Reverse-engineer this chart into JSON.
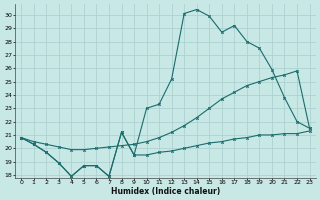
{
  "xlabel": "Humidex (Indice chaleur)",
  "xlim": [
    -0.5,
    23.5
  ],
  "ylim": [
    17.8,
    30.8
  ],
  "yticks": [
    18,
    19,
    20,
    21,
    22,
    23,
    24,
    25,
    26,
    27,
    28,
    29,
    30
  ],
  "xticks": [
    0,
    1,
    2,
    3,
    4,
    5,
    6,
    7,
    8,
    9,
    10,
    11,
    12,
    13,
    14,
    15,
    16,
    17,
    18,
    19,
    20,
    21,
    22,
    23
  ],
  "bg_color": "#c8e8e6",
  "line_color": "#1a6b6b",
  "grid_color": "#a8cece",
  "line1_x": [
    0,
    1,
    2,
    3,
    4,
    5,
    6,
    7,
    8,
    9,
    10,
    11,
    12,
    13,
    14,
    15,
    16,
    17,
    18,
    19,
    20,
    21,
    22,
    23
  ],
  "line1_y": [
    20.8,
    20.3,
    19.7,
    18.9,
    17.9,
    18.7,
    18.7,
    17.9,
    21.2,
    19.5,
    19.5,
    19.7,
    19.8,
    20.0,
    20.2,
    20.4,
    20.5,
    20.7,
    20.8,
    21.0,
    21.0,
    21.1,
    21.1,
    21.3
  ],
  "line2_x": [
    0,
    1,
    2,
    3,
    4,
    5,
    6,
    7,
    8,
    9,
    10,
    11,
    12,
    13,
    14,
    15,
    16,
    17,
    18,
    19,
    20,
    21,
    22,
    23
  ],
  "line2_y": [
    20.8,
    20.3,
    19.7,
    18.9,
    17.9,
    18.7,
    18.7,
    17.9,
    21.2,
    19.5,
    23.0,
    23.3,
    25.2,
    30.1,
    30.4,
    29.9,
    28.7,
    29.2,
    28.0,
    27.5,
    25.9,
    23.8,
    22.0,
    21.5
  ],
  "line3_x": [
    0,
    1,
    2,
    3,
    4,
    5,
    6,
    7,
    8,
    9,
    10,
    11,
    12,
    13,
    14,
    15,
    16,
    17,
    18,
    19,
    20,
    21,
    22,
    23
  ],
  "line3_y": [
    20.8,
    20.5,
    20.3,
    20.1,
    19.9,
    19.9,
    20.0,
    20.1,
    20.2,
    20.3,
    20.5,
    20.8,
    21.2,
    21.7,
    22.3,
    23.0,
    23.7,
    24.2,
    24.7,
    25.0,
    25.3,
    25.5,
    25.8,
    21.5
  ]
}
